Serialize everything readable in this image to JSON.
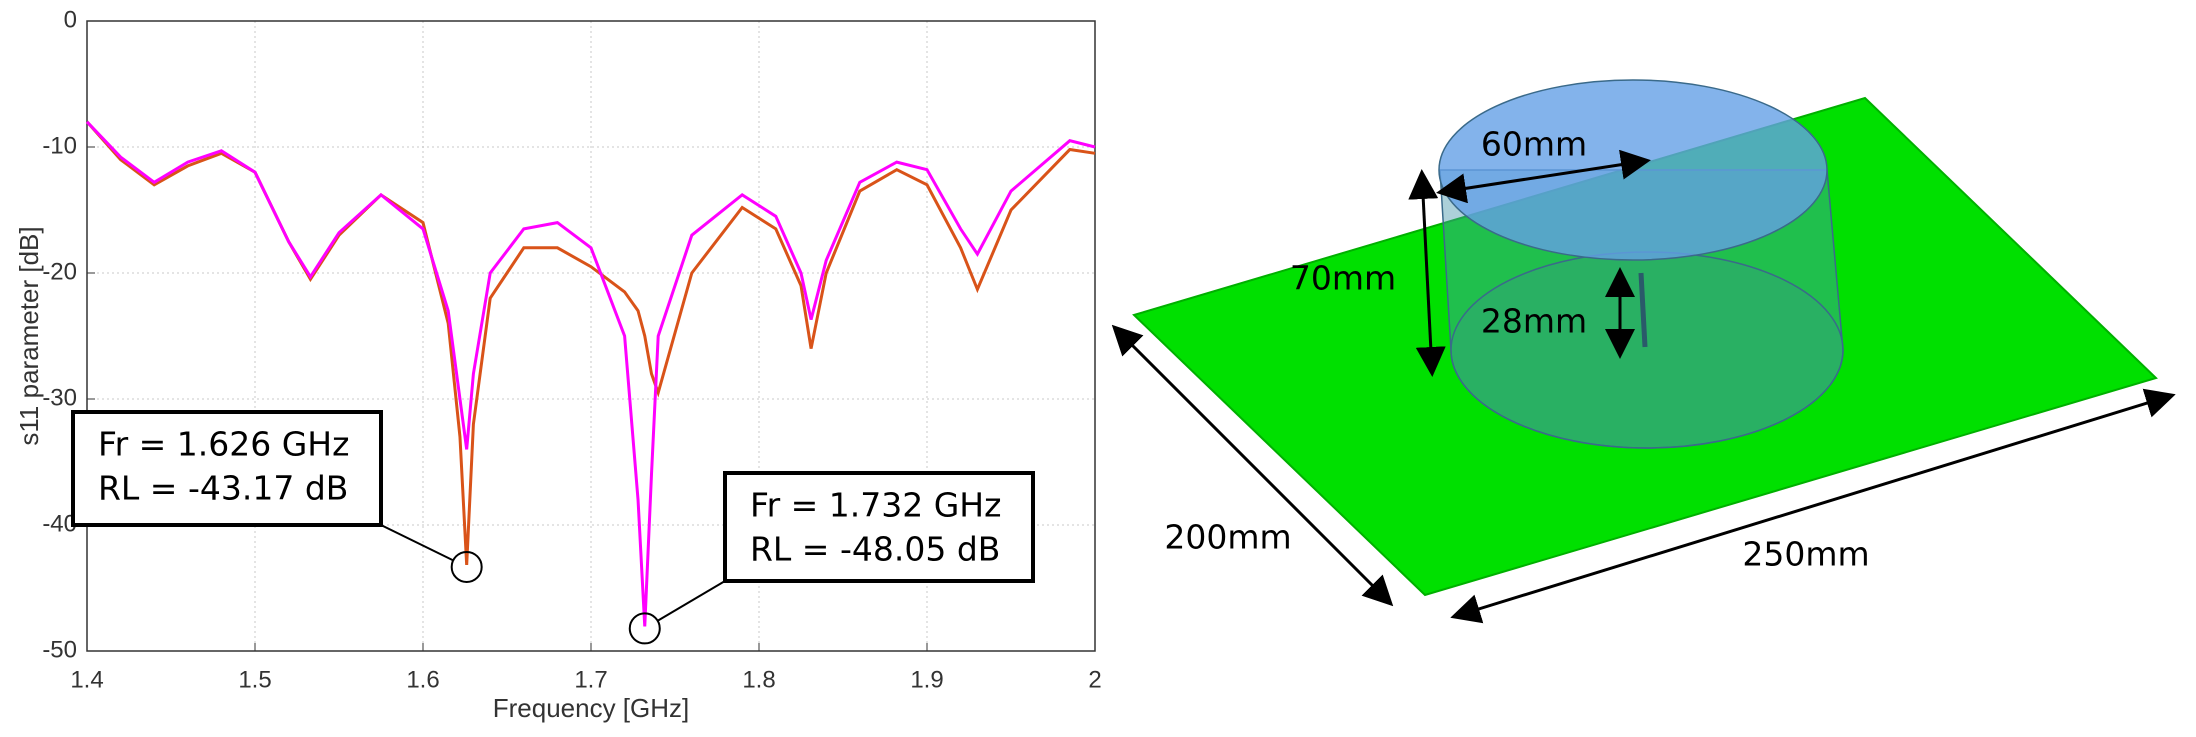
{
  "chart_data": {
    "type": "line",
    "xlabel": "Frequency [GHz]",
    "ylabel": "s11 parameter [dB]",
    "x": [
      1.4,
      1.42,
      1.44,
      1.46,
      1.48,
      1.5,
      1.52,
      1.533,
      1.55,
      1.575,
      1.6,
      1.615,
      1.622,
      1.626,
      1.63,
      1.64,
      1.66,
      1.68,
      1.7,
      1.72,
      1.728,
      1.732,
      1.736,
      1.74,
      1.76,
      1.79,
      1.81,
      1.825,
      1.831,
      1.84,
      1.86,
      1.882,
      1.9,
      1.92,
      1.93,
      1.95,
      1.985,
      2.0
    ],
    "series": [
      {
        "color": "#d95319",
        "values": [
          -8,
          -11,
          -13,
          -11.5,
          -10.5,
          -12,
          -17.5,
          -20.5,
          -17,
          -13.8,
          -16,
          -24,
          -33,
          -43.17,
          -32,
          -22,
          -18,
          -18,
          -19.5,
          -21.5,
          -23,
          -25,
          -28,
          -29.5,
          -20,
          -14.8,
          -16.5,
          -21,
          -26,
          -20,
          -13.5,
          -11.8,
          -13,
          -18,
          -21.3,
          -15,
          -10.2,
          -10.5
        ]
      },
      {
        "color": "#ff00ff",
        "values": [
          -8,
          -10.8,
          -12.8,
          -11.2,
          -10.3,
          -12,
          -17.5,
          -20.3,
          -16.8,
          -13.8,
          -16.5,
          -23,
          -30,
          -34,
          -28,
          -20,
          -16.5,
          -16,
          -18,
          -25,
          -38,
          -48.05,
          -36,
          -25,
          -17,
          -13.8,
          -15.5,
          -20,
          -23.7,
          -19,
          -12.8,
          -11.2,
          -11.8,
          -16.5,
          -18.5,
          -13.5,
          -9.5,
          -10
        ]
      }
    ],
    "xlim": [
      1.4,
      2
    ],
    "xticks": [
      1.4,
      1.5,
      1.6,
      1.7,
      1.8,
      1.9,
      2
    ],
    "ylim": [
      -50,
      0
    ],
    "yticks": [
      0,
      -10,
      -20,
      -30,
      -40,
      -50
    ],
    "grid": true,
    "annotations": [
      {
        "series": 0,
        "lines": [
          "Fr = 1.626 GHz",
          "RL = -43.17 dB"
        ]
      },
      {
        "series": 1,
        "lines": [
          "Fr = 1.732 GHz",
          "RL = -48.05 dB"
        ]
      }
    ]
  },
  "diagram": {
    "labels": [
      "60mm",
      "70mm",
      "28mm",
      "200mm",
      "250mm"
    ]
  }
}
